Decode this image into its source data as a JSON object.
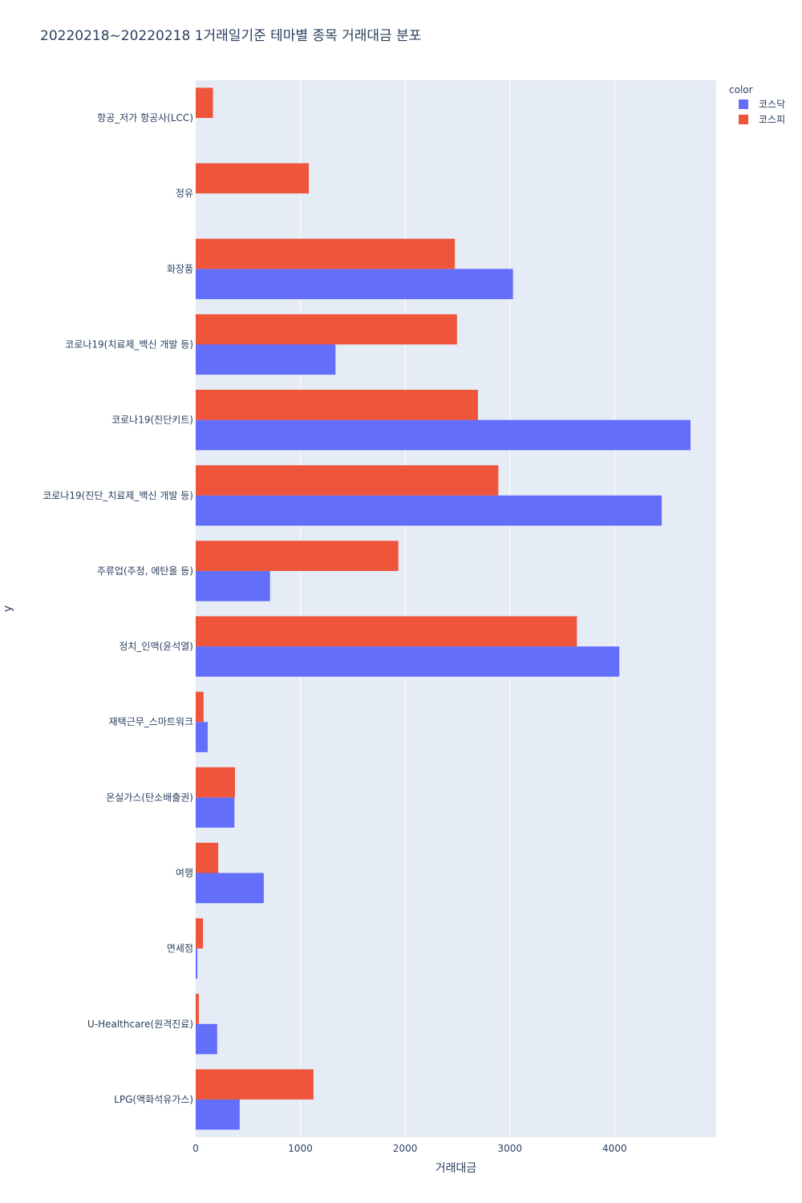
{
  "chart_data": {
    "type": "bar",
    "orientation": "horizontal",
    "barmode": "group",
    "title": "20220218~20220218 1거래일기준 테마별 종목 거래대금 분포",
    "xlabel": "거래대금",
    "ylabel": "y",
    "xlim": [
      0,
      4970
    ],
    "xticks": [
      0,
      1000,
      2000,
      3000,
      4000
    ],
    "grid": true,
    "legend": {
      "title": "color",
      "position": "top-right"
    },
    "categories": [
      "항공_저가 항공사(LCC)",
      "정유",
      "화장품",
      "코로나19(치료제_백신 개발 등)",
      "코로나19(진단키트)",
      "코로나19(진단_치료제_백신 개발 등)",
      "주류업(주정, 에탄올 등)",
      "정치_인맥(윤석열)",
      "재택근무_스마트워크",
      "온실가스(탄소배출권)",
      "여행",
      "면세점",
      "U-Healthcare(원격진료)",
      "LPG(액화석유가스)"
    ],
    "series": [
      {
        "name": "코스닥",
        "color": "#636efa",
        "values": [
          null,
          null,
          3030,
          1335,
          4725,
          4450,
          710,
          4045,
          115,
          370,
          650,
          15,
          205,
          420
        ]
      },
      {
        "name": "코스피",
        "color": "#ef553b",
        "values": [
          165,
          1080,
          2475,
          2495,
          2695,
          2890,
          1935,
          3640,
          75,
          375,
          215,
          70,
          30,
          1125
        ]
      }
    ]
  }
}
